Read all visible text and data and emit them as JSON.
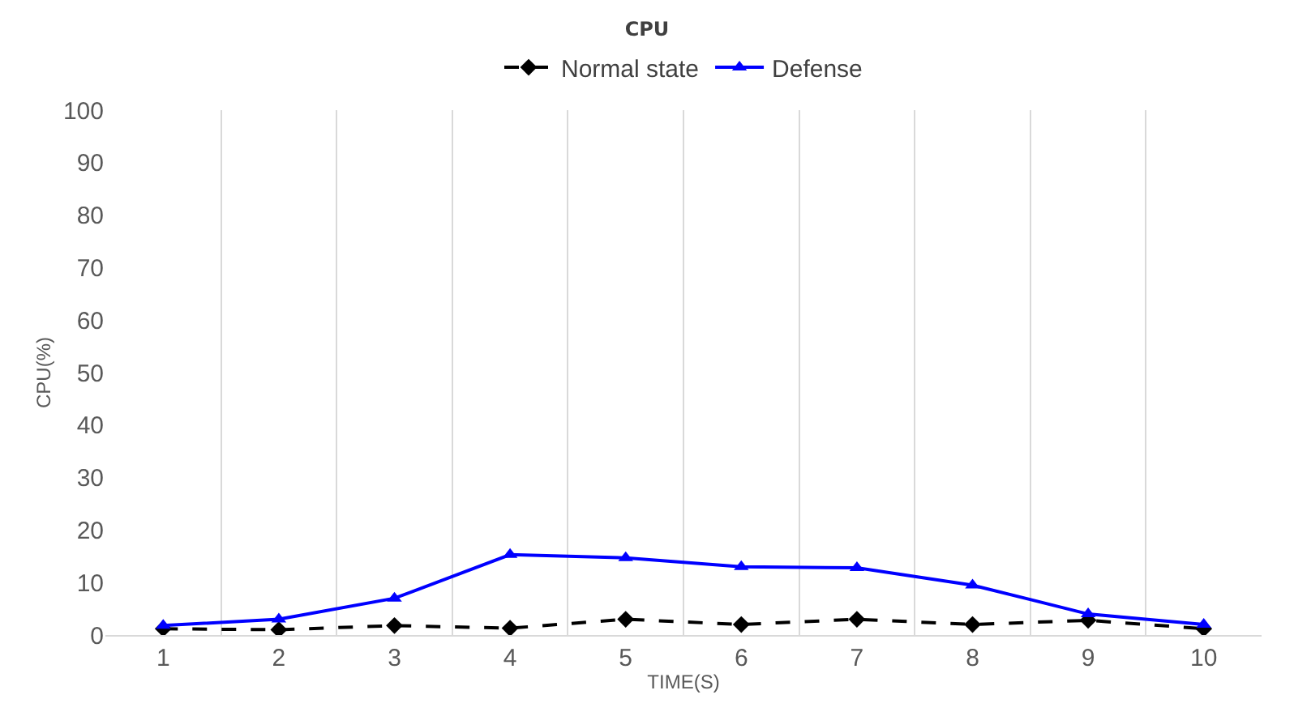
{
  "chart_data": {
    "type": "line",
    "title": "CPU",
    "xlabel": "TIME(S)",
    "ylabel": "CPU(%)",
    "categories": [
      "1",
      "2",
      "3",
      "4",
      "5",
      "6",
      "7",
      "8",
      "9",
      "10"
    ],
    "series": [
      {
        "name": "Normal state",
        "color": "#000000",
        "marker": "diamond",
        "line_style": "dashed",
        "values": [
          1.2,
          1,
          1.8,
          1.3,
          3,
          2,
          3,
          2,
          2.8,
          1.2
        ]
      },
      {
        "name": "Defense",
        "color": "#0000ff",
        "marker": "triangle",
        "line_style": "solid",
        "values": [
          1.8,
          3,
          7,
          15.3,
          14.7,
          13,
          12.8,
          9.5,
          4,
          2
        ]
      }
    ],
    "ylim": [
      0,
      100
    ],
    "yticks": [
      0,
      10,
      20,
      30,
      40,
      50,
      60,
      70,
      80,
      90,
      100
    ],
    "grid": "x",
    "legend": "top"
  }
}
